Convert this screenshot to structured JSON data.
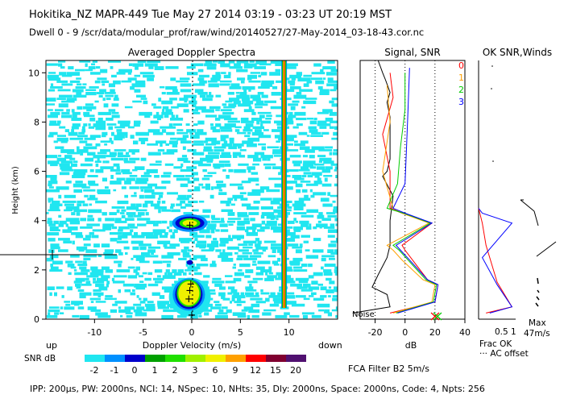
{
  "header": {
    "line1": "Hokitika_NZ   MAPR-449   Tue May 27 2014 03:19  -  03:23 UT 20:19 MST",
    "line2": "Dwell   0  -   9     /scr/data/modular_prof/raw/wind/20140527/27-May-2014_03-18-43.cor.nc"
  },
  "colors": {
    "panel_bg": "#20e6f0",
    "signal_line": "#000000",
    "snr_0": "#ff0000",
    "snr_1": "#ffa000",
    "snr_2": "#00cc00",
    "snr_3": "#0000ff"
  },
  "chart_data": [
    {
      "type": "heatmap",
      "title": "Averaged Doppler Spectra",
      "xlabel": "Doppler Velocity (m/s)",
      "ylabel": "Height (km)",
      "xlim": [
        -15,
        15
      ],
      "ylim": [
        0,
        10.5
      ],
      "xticks": [
        "-10",
        "-5",
        "0",
        "5",
        "10"
      ],
      "yticks": [
        "0",
        "2",
        "4",
        "6",
        "8",
        "10"
      ],
      "x_left_label": "up",
      "x_right_label": "down",
      "peaks": [
        {
          "x": -0.3,
          "y": 0.85,
          "label": "+"
        },
        {
          "x": -0.2,
          "y": 1.2,
          "label": "+"
        },
        {
          "x": -0.1,
          "y": 1.45,
          "label": "+"
        },
        {
          "x": -0.2,
          "y": 3.85,
          "label": "+"
        },
        {
          "x": 0.0,
          "y": 0.2,
          "label": "+"
        }
      ],
      "spike_velocity": 9.5,
      "colorbar": {
        "label": "SNR dB",
        "levels": [
          "-2",
          "-1",
          "0",
          "1",
          "2",
          "3",
          "6",
          "9",
          "12",
          "15",
          "20"
        ],
        "colors": [
          "#20e6f0",
          "#0090ff",
          "#0000cc",
          "#00a000",
          "#20e000",
          "#a0f000",
          "#f0f000",
          "#ffa000",
          "#ff0000",
          "#800030",
          "#501070"
        ]
      }
    },
    {
      "type": "line",
      "title": "Signal, SNR",
      "xlabel": "dB",
      "xlim": [
        -30,
        40
      ],
      "xticks": [
        "-20",
        "0",
        "20",
        "40"
      ],
      "noise_label": "Noise",
      "legend": [
        "0",
        "1",
        "2",
        "3"
      ],
      "series": [
        {
          "name": "Signal",
          "x": [
            -35,
            -10,
            -12,
            -22,
            -18,
            -12,
            -10,
            -10,
            -10,
            -8,
            -15,
            -12,
            -10,
            -10,
            -10,
            -12,
            -10,
            -13,
            -15,
            -18
          ],
          "y": [
            0.25,
            0.5,
            1.0,
            1.3,
            1.8,
            2.5,
            3.0,
            3.4,
            4.0,
            5.0,
            5.8,
            6.0,
            6.5,
            7.5,
            8.2,
            8.8,
            9.2,
            9.7,
            10.0,
            10.5
          ]
        },
        {
          "name": "0",
          "x": [
            -10,
            20,
            22,
            15,
            5,
            0,
            -2,
            18,
            -2,
            -10,
            -10,
            -15,
            -8,
            -10
          ],
          "y": [
            0.25,
            0.7,
            1.4,
            1.6,
            2.4,
            2.8,
            3.0,
            3.9,
            4.3,
            4.5,
            6.0,
            7.5,
            9.0,
            10.0
          ]
        },
        {
          "name": "1",
          "x": [
            -8,
            18,
            20,
            12,
            -2,
            -8,
            -12,
            16,
            -2,
            -8,
            -15,
            -10,
            -12
          ],
          "y": [
            0.25,
            0.7,
            1.4,
            1.6,
            2.4,
            2.8,
            3.0,
            3.9,
            4.3,
            4.5,
            6.0,
            8.0,
            9.5
          ]
        },
        {
          "name": "2",
          "x": [
            -6,
            19,
            21,
            14,
            2,
            -4,
            -8,
            17,
            -1,
            -12,
            -5,
            -3,
            0,
            0
          ],
          "y": [
            0.25,
            0.7,
            1.4,
            1.6,
            2.4,
            2.8,
            3.0,
            3.9,
            4.3,
            4.5,
            5.5,
            7.0,
            8.5,
            10.0
          ]
        },
        {
          "name": "3",
          "x": [
            -5,
            20,
            22,
            15,
            3,
            -3,
            -6,
            18,
            0,
            -8,
            0,
            1,
            2,
            3
          ],
          "y": [
            0.25,
            0.7,
            1.4,
            1.6,
            2.4,
            2.8,
            3.0,
            3.9,
            4.3,
            4.5,
            5.5,
            7.0,
            8.5,
            10.2
          ]
        }
      ]
    },
    {
      "type": "line",
      "title": "OK SNR,Winds",
      "xlim": [
        0,
        1
      ],
      "xticks": [
        "0.5",
        "1"
      ],
      "frac_label": "Frac OK",
      "offset_label": "AC offset",
      "max_label": "Max",
      "max_value": "47m/s",
      "series": [
        {
          "name": "0",
          "x": [
            0.2,
            0.9,
            0.5,
            0.2,
            0.1,
            0.0
          ],
          "y": [
            0.25,
            0.5,
            1.5,
            3.0,
            3.9,
            4.5
          ]
        },
        {
          "name": "3",
          "x": [
            0.3,
            0.9,
            0.5,
            0.1,
            0.9,
            0.1,
            0.0
          ],
          "y": [
            0.25,
            0.5,
            1.4,
            2.5,
            3.9,
            4.3,
            4.5
          ]
        }
      ]
    }
  ],
  "footer": {
    "filter": "FCA Filter B2   5m/s",
    "params": "IPP: 200µs,   PW: 2000ns,   NCI:  14,   NSpec: 10,  NHts: 35,   Dly: 2000ns,   Space: 2000ns,   Code: 4,   Npts: 256"
  }
}
